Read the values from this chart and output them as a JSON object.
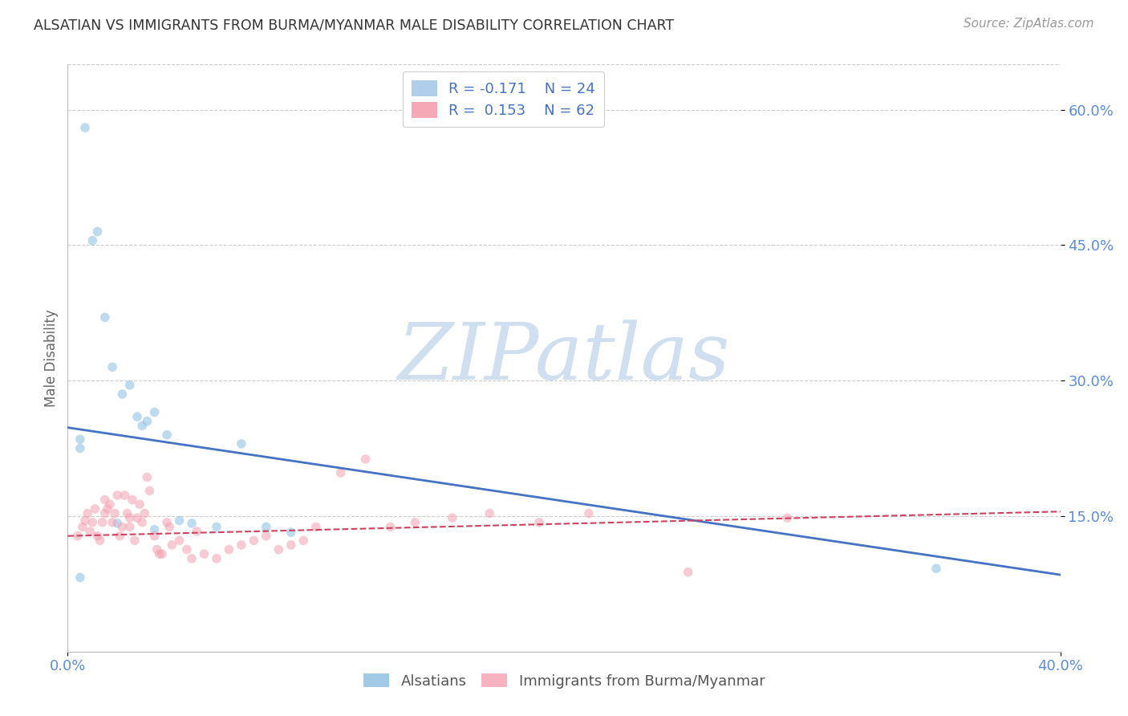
{
  "title": "ALSATIAN VS IMMIGRANTS FROM BURMA/MYANMAR MALE DISABILITY CORRELATION CHART",
  "source": "Source: ZipAtlas.com",
  "ylabel": "Male Disability",
  "xlim": [
    0.0,
    0.4
  ],
  "ylim": [
    0.0,
    0.65
  ],
  "yticks": [
    0.15,
    0.3,
    0.45,
    0.6
  ],
  "ytick_labels": [
    "15.0%",
    "30.0%",
    "45.0%",
    "60.0%"
  ],
  "xtick_vals": [
    0.0,
    0.4
  ],
  "xtick_labels": [
    "0.0%",
    "40.0%"
  ],
  "watermark": "ZIPatlas",
  "blue_scatter_x": [
    0.005,
    0.005,
    0.007,
    0.01,
    0.012,
    0.015,
    0.018,
    0.022,
    0.025,
    0.028,
    0.03,
    0.032,
    0.035,
    0.035,
    0.04,
    0.045,
    0.05,
    0.06,
    0.07,
    0.08,
    0.09,
    0.35,
    0.005,
    0.02
  ],
  "blue_scatter_y": [
    0.225,
    0.235,
    0.58,
    0.455,
    0.465,
    0.37,
    0.315,
    0.285,
    0.295,
    0.26,
    0.25,
    0.255,
    0.265,
    0.135,
    0.24,
    0.145,
    0.142,
    0.138,
    0.23,
    0.138,
    0.132,
    0.092,
    0.082,
    0.142
  ],
  "pink_scatter_x": [
    0.004,
    0.006,
    0.007,
    0.008,
    0.009,
    0.01,
    0.011,
    0.012,
    0.013,
    0.014,
    0.015,
    0.015,
    0.016,
    0.017,
    0.018,
    0.019,
    0.02,
    0.021,
    0.022,
    0.023,
    0.024,
    0.025,
    0.025,
    0.026,
    0.027,
    0.028,
    0.029,
    0.03,
    0.031,
    0.032,
    0.033,
    0.035,
    0.036,
    0.037,
    0.038,
    0.04,
    0.041,
    0.042,
    0.045,
    0.048,
    0.05,
    0.052,
    0.055,
    0.06,
    0.065,
    0.07,
    0.075,
    0.08,
    0.085,
    0.09,
    0.095,
    0.1,
    0.11,
    0.12,
    0.13,
    0.14,
    0.155,
    0.17,
    0.19,
    0.21,
    0.25,
    0.29
  ],
  "pink_scatter_y": [
    0.128,
    0.138,
    0.145,
    0.153,
    0.133,
    0.143,
    0.158,
    0.128,
    0.123,
    0.143,
    0.168,
    0.153,
    0.158,
    0.163,
    0.143,
    0.153,
    0.173,
    0.128,
    0.138,
    0.173,
    0.153,
    0.138,
    0.148,
    0.168,
    0.123,
    0.148,
    0.163,
    0.143,
    0.153,
    0.193,
    0.178,
    0.128,
    0.113,
    0.108,
    0.108,
    0.143,
    0.138,
    0.118,
    0.123,
    0.113,
    0.103,
    0.133,
    0.108,
    0.103,
    0.113,
    0.118,
    0.123,
    0.128,
    0.113,
    0.118,
    0.123,
    0.138,
    0.198,
    0.213,
    0.138,
    0.143,
    0.148,
    0.153,
    0.143,
    0.153,
    0.088,
    0.148
  ],
  "blue_line_x": [
    0.0,
    0.4
  ],
  "blue_line_y": [
    0.248,
    0.085
  ],
  "pink_line_x": [
    0.0,
    0.4
  ],
  "pink_line_y": [
    0.128,
    0.155
  ],
  "scatter_alpha": 0.55,
  "scatter_size": 70,
  "title_color": "#333333",
  "source_color": "#999999",
  "axis_color": "#bbbbbb",
  "tick_color": "#5b8dd9",
  "grid_color": "#cccccc",
  "blue_scatter_color": "#89bde0",
  "pink_scatter_color": "#f4a0b0",
  "blue_line_color": "#4472c4",
  "pink_line_color": "#d04060",
  "watermark_color": "#d0dff0",
  "legend_blue_label_r": "R = -0.171",
  "legend_blue_label_n": "N = 24",
  "legend_pink_label_r": "R =  0.153",
  "legend_pink_label_n": "N = 62",
  "legend_blue_patch_color": "#a8c8e8",
  "legend_pink_patch_color": "#f4a0b0"
}
